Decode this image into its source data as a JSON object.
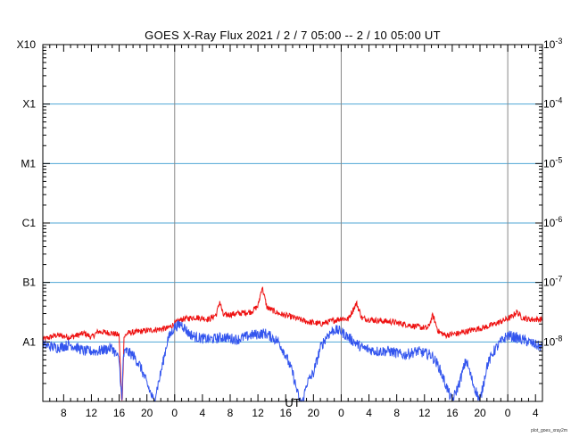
{
  "chart_data": {
    "type": "line",
    "title": "GOES X-Ray Flux   2021 /  2  /  7   05:00 --  2  / 10   05:00   UT",
    "xlabel": "UT",
    "x_tick_labels": [
      "8",
      "12",
      "16",
      "20",
      "0",
      "4",
      "8",
      "12",
      "16",
      "20",
      "0",
      "4",
      "8",
      "12",
      "16",
      "20",
      "0",
      "4"
    ],
    "x_tick_hours": [
      3,
      7,
      11,
      15,
      19,
      23,
      27,
      31,
      35,
      39,
      43,
      47,
      51,
      55,
      59,
      63,
      67,
      71
    ],
    "x_day_boundaries_hours": [
      19,
      43,
      67
    ],
    "xlim_hours": [
      0,
      72
    ],
    "y_scale": "log",
    "ylim": [
      1e-09,
      0.001
    ],
    "y_left_labels": [
      {
        "label": "X10",
        "value": 0.001
      },
      {
        "label": "X1",
        "value": 0.0001
      },
      {
        "label": "M1",
        "value": 1e-05
      },
      {
        "label": "C1",
        "value": 1e-06
      },
      {
        "label": "B1",
        "value": 1e-07
      },
      {
        "label": "A1",
        "value": 1e-08
      }
    ],
    "y_right_labels": [
      {
        "base": "10",
        "exp": "-3",
        "value": 0.001
      },
      {
        "base": "10",
        "exp": "-4",
        "value": 0.0001
      },
      {
        "base": "10",
        "exp": "-5",
        "value": 1e-05
      },
      {
        "base": "10",
        "exp": "-6",
        "value": 1e-06
      },
      {
        "base": "10",
        "exp": "-7",
        "value": 1e-07
      },
      {
        "base": "10",
        "exp": "-8",
        "value": 1e-08
      }
    ],
    "grid": {
      "horizontal_color": "#4fa6d6",
      "vertical_color": "#888888"
    },
    "series": [
      {
        "color": "#ee1111",
        "x_hours": [
          0,
          2,
          4,
          6,
          7,
          8,
          10,
          11,
          11.4,
          11.7,
          12.2,
          14,
          16,
          18,
          20,
          22,
          24,
          25,
          25.5,
          26,
          28,
          30,
          31,
          31.6,
          32.3,
          34,
          36,
          38,
          40,
          42,
          43,
          44,
          45.2,
          46,
          48,
          50,
          52,
          54,
          55.5,
          56.2,
          57,
          58,
          60,
          62,
          64,
          66,
          67.5,
          68.3,
          69,
          70,
          72
        ],
        "values": [
          1.1e-08,
          1.3e-08,
          1.2e-08,
          1.4e-08,
          1.2e-08,
          1.5e-08,
          1.4e-08,
          1.3e-08,
          7e-10,
          1.2e-08,
          1.4e-08,
          1.5e-08,
          1.6e-08,
          1.7e-08,
          2.4e-08,
          2.6e-08,
          2.4e-08,
          2.9e-08,
          4.8e-08,
          2.8e-08,
          3e-08,
          3.2e-08,
          4e-08,
          8.5e-08,
          3.8e-08,
          3e-08,
          2.6e-08,
          2.2e-08,
          2e-08,
          2.3e-08,
          2.5e-08,
          2.4e-08,
          4.5e-08,
          2.5e-08,
          2.3e-08,
          2.2e-08,
          2e-08,
          1.8e-08,
          1.7e-08,
          2.8e-08,
          1.5e-08,
          1.3e-08,
          1.4e-08,
          1.6e-08,
          1.8e-08,
          2.2e-08,
          2.6e-08,
          3.2e-08,
          2.6e-08,
          2.4e-08,
          2.4e-08
        ]
      },
      {
        "color": "#3355ee",
        "x_hours": [
          0,
          2,
          4,
          6,
          8,
          10,
          11,
          11.4,
          11.6,
          12,
          13,
          14,
          15,
          16,
          17,
          18,
          19,
          20,
          21,
          22,
          24,
          26,
          28,
          30,
          32,
          33,
          34,
          35,
          36,
          37,
          37.5,
          38,
          39,
          40,
          41,
          42,
          43,
          44,
          46,
          48,
          50,
          52,
          54,
          56,
          57,
          58,
          59,
          60,
          61,
          62,
          63,
          64,
          65,
          66,
          67,
          68,
          70,
          72
        ],
        "values": [
          9e-09,
          8e-09,
          9e-09,
          7e-09,
          7e-09,
          8e-09,
          5e-09,
          1e-09,
          6e-09,
          7e-09,
          6e-09,
          4e-09,
          2e-09,
          1e-09,
          3e-09,
          1.1e-08,
          1.8e-08,
          2e-08,
          1.4e-08,
          1.2e-08,
          1.1e-08,
          1.2e-08,
          1.1e-08,
          1.3e-08,
          1.4e-08,
          1.2e-08,
          1e-08,
          6e-09,
          3e-09,
          1e-09,
          1e-09,
          2e-09,
          3e-09,
          8e-09,
          1.3e-08,
          1.6e-08,
          1.5e-08,
          1.2e-08,
          8e-09,
          7e-09,
          7e-09,
          6e-09,
          7e-09,
          6e-09,
          4e-09,
          2e-09,
          1e-09,
          2e-09,
          5e-09,
          2e-09,
          1e-09,
          4e-09,
          7e-09,
          1e-08,
          1.3e-08,
          1.2e-08,
          1e-08,
          8e-09
        ]
      }
    ]
  },
  "footer": {
    "credit": "plot_goes_xray2m"
  }
}
